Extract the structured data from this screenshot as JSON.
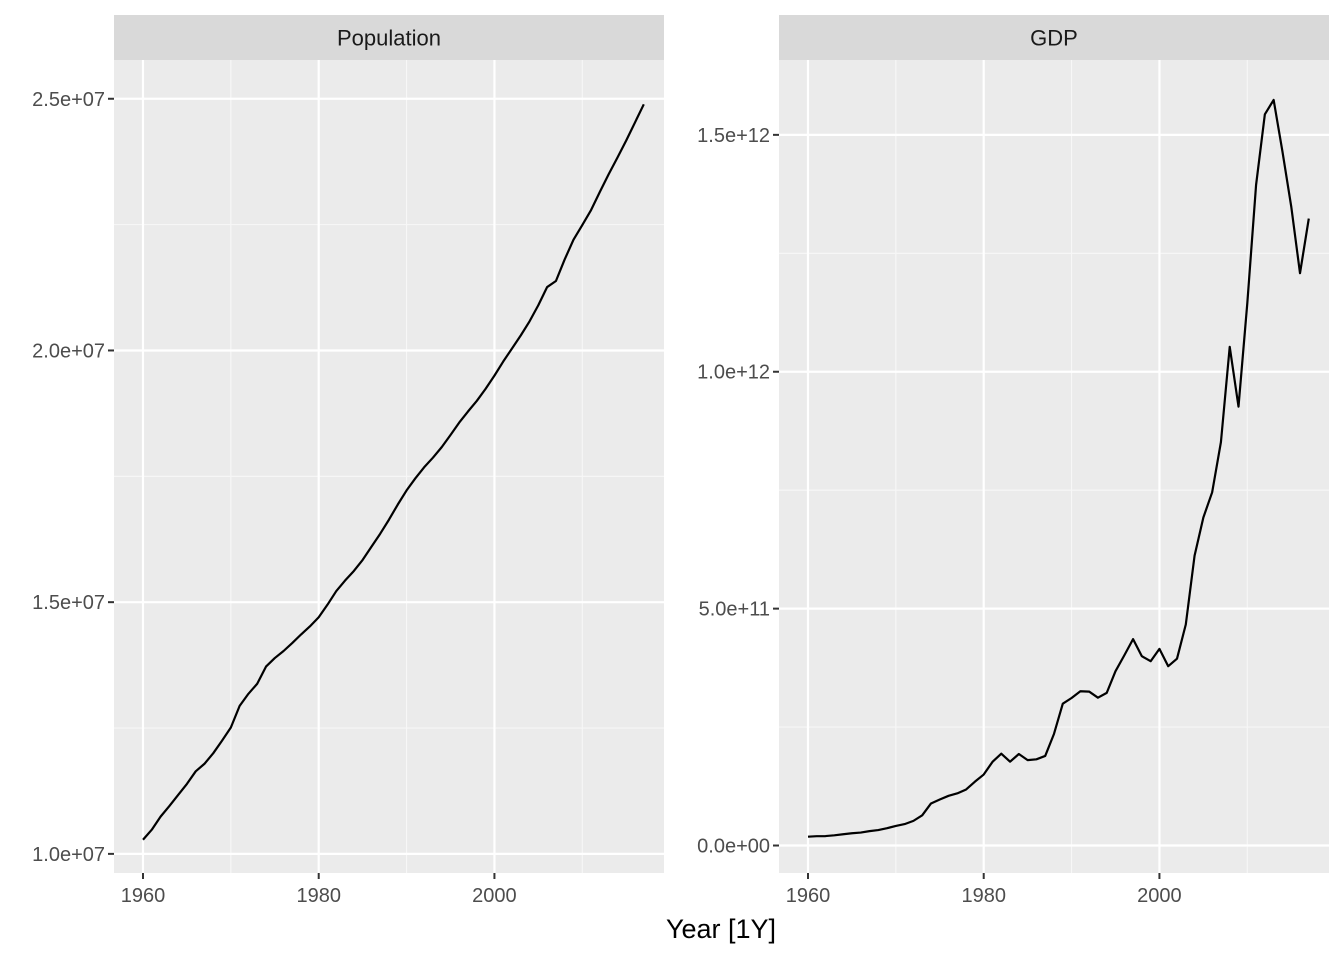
{
  "figure": {
    "xlabel": "Year [1Y]",
    "colors": {
      "panel_background": "#EBEBEB",
      "strip_background": "#D9D9D9",
      "grid_major": "#FFFFFF",
      "grid_minor": "#F7F7F7",
      "line": "#000000",
      "tick_text": "#4D4D4D"
    }
  },
  "chart_data": [
    {
      "type": "line",
      "title": "Population",
      "xlabel": "Year [1Y]",
      "ylabel": "",
      "xlim": [
        1956.7,
        2019.3
      ],
      "ylim": [
        9620000,
        25770000
      ],
      "x_ticks": [
        1960,
        1980,
        2000
      ],
      "x_tick_labels": [
        "1960",
        "1980",
        "2000"
      ],
      "x_minor": [
        1970,
        1990,
        2010
      ],
      "y_ticks": [
        10000000,
        15000000,
        20000000,
        25000000
      ],
      "y_tick_labels": [
        "1.0e+07",
        "1.5e+07",
        "2.0e+07",
        "2.5e+07"
      ],
      "y_minor": [
        12500000,
        17500000,
        22500000
      ],
      "grid": true,
      "series": [
        {
          "x": [
            1960,
            1961,
            1962,
            1963,
            1964,
            1965,
            1966,
            1967,
            1968,
            1969,
            1970,
            1971,
            1972,
            1973,
            1974,
            1975,
            1976,
            1977,
            1978,
            1979,
            1980,
            1981,
            1982,
            1983,
            1984,
            1985,
            1986,
            1987,
            1988,
            1989,
            1990,
            1991,
            1992,
            1993,
            1994,
            1995,
            1996,
            1997,
            1998,
            1999,
            2000,
            2001,
            2002,
            2003,
            2004,
            2005,
            2006,
            2007,
            2008,
            2009,
            2010,
            2011,
            2012,
            2013,
            2014,
            2015,
            2016,
            2017
          ],
          "values": [
            10280000,
            10480000,
            10740000,
            10950000,
            11170000,
            11390000,
            11640000,
            11790000,
            12000000,
            12250000,
            12510000,
            12940000,
            13180000,
            13380000,
            13720000,
            13890000,
            14030000,
            14190000,
            14360000,
            14520000,
            14700000,
            14950000,
            15220000,
            15430000,
            15620000,
            15840000,
            16100000,
            16360000,
            16640000,
            16940000,
            17220000,
            17460000,
            17680000,
            17870000,
            18080000,
            18320000,
            18570000,
            18790000,
            19000000,
            19240000,
            19500000,
            19780000,
            20040000,
            20300000,
            20580000,
            20900000,
            21260000,
            21380000,
            21810000,
            22200000,
            22490000,
            22790000,
            23150000,
            23500000,
            23830000,
            24170000,
            24530000,
            24890000
          ]
        }
      ]
    },
    {
      "type": "line",
      "title": "GDP",
      "xlabel": "Year [1Y]",
      "ylabel": "",
      "xlim": [
        1956.7,
        2019.3
      ],
      "ylim": [
        -58000000000,
        1658000000000
      ],
      "x_ticks": [
        1960,
        1980,
        2000
      ],
      "x_tick_labels": [
        "1960",
        "1980",
        "2000"
      ],
      "x_minor": [
        1970,
        1990,
        2010
      ],
      "y_ticks": [
        0,
        500000000000,
        1000000000000,
        1500000000000
      ],
      "y_tick_labels": [
        "0.0e+00",
        "5.0e+11",
        "1.0e+12",
        "1.5e+12"
      ],
      "y_minor": [
        250000000000,
        750000000000,
        1250000000000
      ],
      "grid": true,
      "series": [
        {
          "x": [
            1960,
            1961,
            1962,
            1963,
            1964,
            1965,
            1966,
            1967,
            1968,
            1969,
            1970,
            1971,
            1972,
            1973,
            1974,
            1975,
            1976,
            1977,
            1978,
            1979,
            1980,
            1981,
            1982,
            1983,
            1984,
            1985,
            1986,
            1987,
            1988,
            1989,
            1990,
            1991,
            1992,
            1993,
            1994,
            1995,
            1996,
            1997,
            1998,
            1999,
            2000,
            2001,
            2002,
            2003,
            2004,
            2005,
            2006,
            2007,
            2008,
            2009,
            2010,
            2011,
            2012,
            2013,
            2014,
            2015,
            2016,
            2017
          ],
          "values": [
            18600000000,
            19700000000,
            19900000000,
            21500000000,
            23800000000,
            25900000000,
            27300000000,
            30400000000,
            32700000000,
            36600000000,
            41300000000,
            45200000000,
            52000000000,
            63700000000,
            88800000000,
            97200000000,
            104900000000,
            110100000000,
            118300000000,
            134800000000,
            149800000000,
            176600000000,
            193800000000,
            177000000000,
            193200000000,
            180200000000,
            182000000000,
            189100000000,
            235700000000,
            299300000000,
            311400000000,
            325600000000,
            324900000000,
            312000000000,
            322200000000,
            368000000000,
            401300000000,
            435600000000,
            399600000000,
            389000000000,
            415000000000,
            378500000000,
            394300000000,
            466500000000,
            611900000000,
            692400000000,
            745500000000,
            851600000000,
            1052600000000,
            926400000000,
            1144300000000,
            1394300000000,
            1543400000000,
            1573700000000,
            1464900000000,
            1349000000000,
            1208000000000,
            1323400000000
          ]
        }
      ]
    }
  ]
}
